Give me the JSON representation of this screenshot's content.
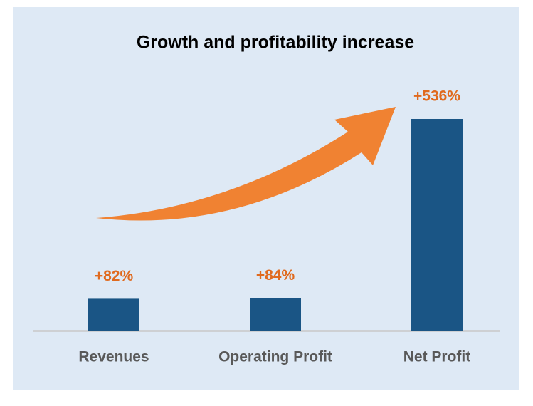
{
  "chart_data": {
    "type": "bar",
    "title": "Growth and profitability increase",
    "categories": [
      "Revenues",
      "Operating Profit",
      "Net Profit"
    ],
    "values": [
      82,
      84,
      536
    ],
    "value_labels": [
      "+82%",
      "+84%",
      "+536%"
    ],
    "color": "#1a5585"
  }
}
